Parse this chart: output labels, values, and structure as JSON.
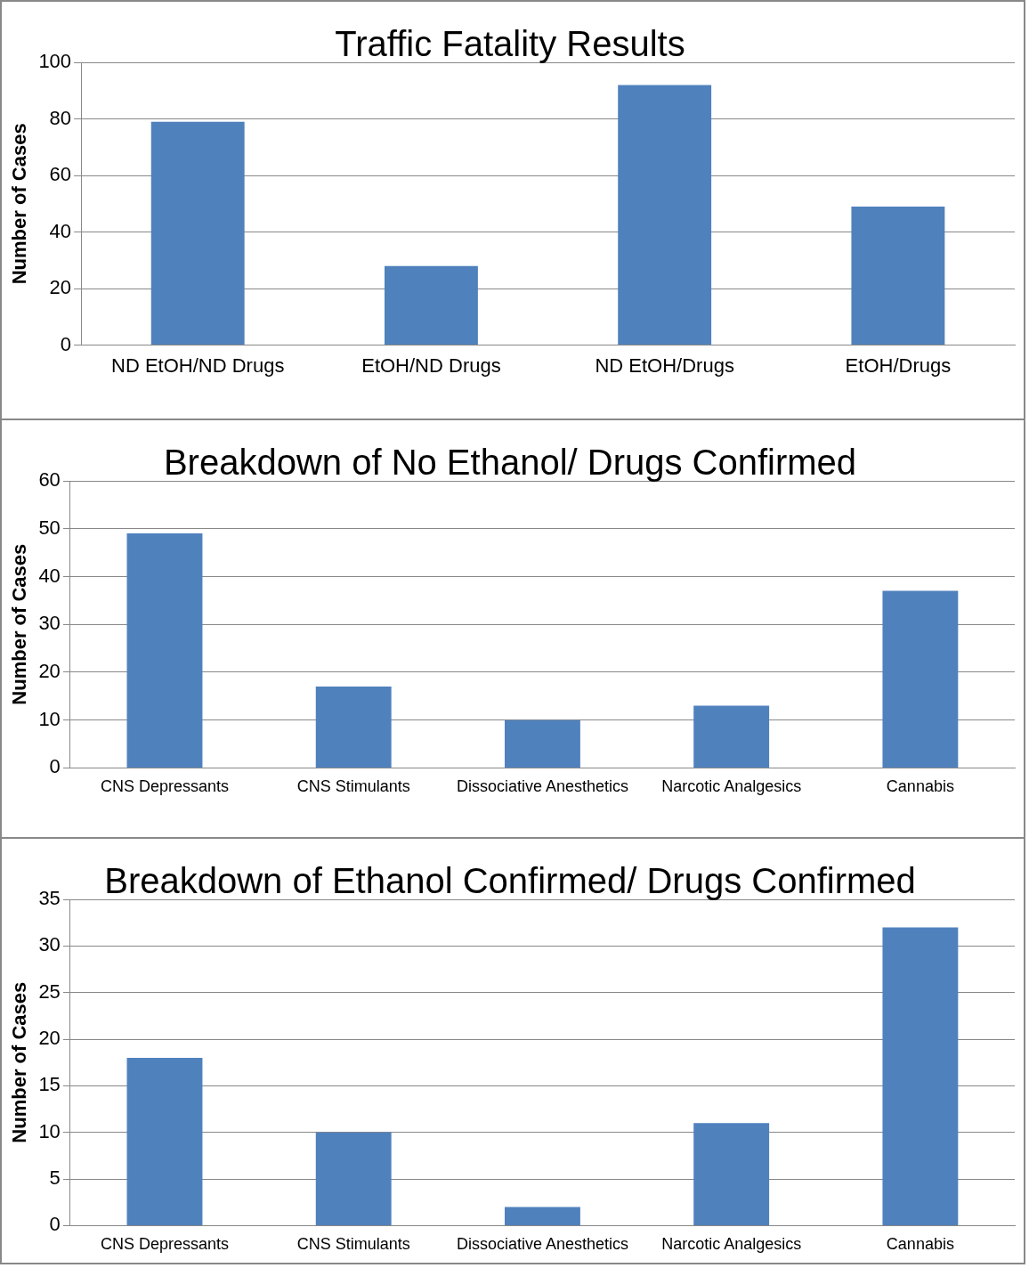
{
  "chart_data": [
    {
      "type": "bar",
      "title": "Traffic Fatality Results",
      "ylabel": "Number of Cases",
      "categories": [
        "ND EtOH/ND Drugs",
        "EtOH/ND Drugs",
        "ND EtOH/Drugs",
        "EtOH/Drugs"
      ],
      "values": [
        79,
        28,
        92,
        49
      ],
      "color": "#4f81bd",
      "ylim": [
        0,
        100
      ],
      "yticks": [
        0,
        20,
        40,
        60,
        80,
        100
      ],
      "grid": "y",
      "legend": false
    },
    {
      "type": "bar",
      "title": "Breakdown of No Ethanol/ Drugs Confirmed",
      "ylabel": "Number of Cases",
      "categories": [
        "CNS Depressants",
        "CNS Stimulants",
        "Dissociative Anesthetics",
        "Narcotic Analgesics",
        "Cannabis"
      ],
      "values": [
        49,
        17,
        10,
        13,
        37
      ],
      "color": "#4f81bd",
      "ylim": [
        0,
        60
      ],
      "yticks": [
        0,
        10,
        20,
        30,
        40,
        50,
        60
      ],
      "grid": "y",
      "legend": false
    },
    {
      "type": "bar",
      "title": "Breakdown of Ethanol Confirmed/ Drugs Confirmed",
      "ylabel": "Number of Cases",
      "categories": [
        "CNS Depressants",
        "CNS Stimulants",
        "Dissociative Anesthetics",
        "Narcotic Analgesics",
        "Cannabis"
      ],
      "values": [
        18,
        10,
        2,
        11,
        32
      ],
      "color": "#4f81bd",
      "ylim": [
        0,
        35
      ],
      "yticks": [
        0,
        5,
        10,
        15,
        20,
        25,
        30,
        35
      ],
      "grid": "y",
      "legend": false
    }
  ]
}
